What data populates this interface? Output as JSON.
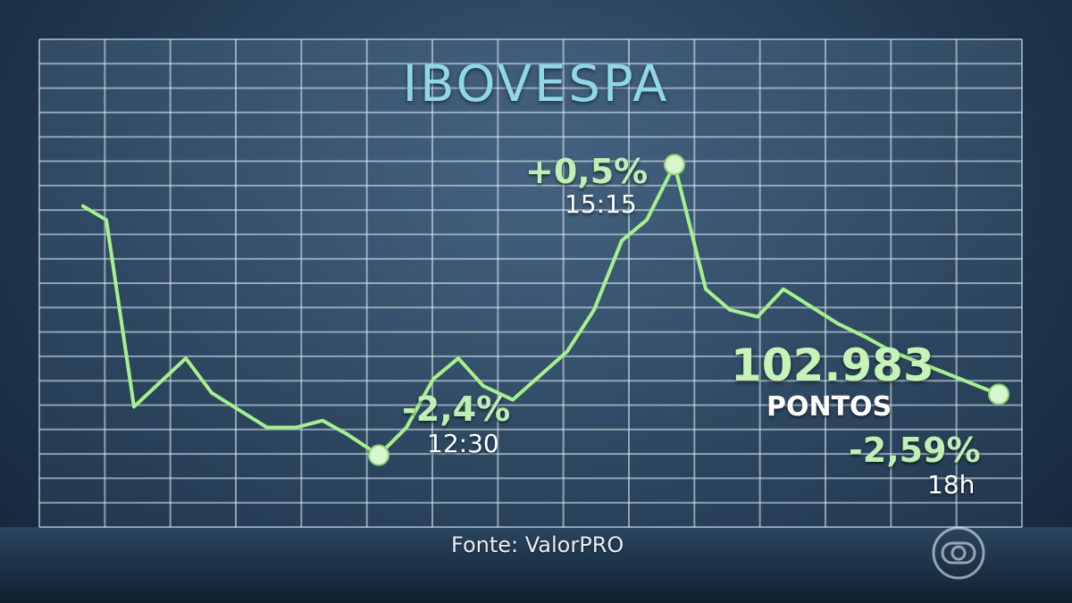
{
  "chart_data": {
    "type": "line",
    "title": "IBOVESPA",
    "series": [
      {
        "values": [
          105.7,
          105.5,
          102.8,
          103.5,
          103.0,
          102.5,
          102.5,
          102.6,
          102.4,
          102.1,
          102.5,
          103.2,
          103.5,
          103.1,
          102.9,
          103.6,
          104.2,
          105.2,
          105.5,
          106.3,
          104.5,
          104.2,
          104.1,
          104.5,
          104.0,
          103.8,
          103.6,
          102.98
        ]
      }
    ],
    "annotations": [
      {
        "label": "+0,5%",
        "time": "15:15"
      },
      {
        "label": "-2,4%",
        "time": "12:30"
      },
      {
        "label": "-2,59%",
        "time": "18h"
      }
    ],
    "close_value": "102.983",
    "close_unit": "PONTOS",
    "source": "Fonte: ValorPRO",
    "line_color": "#a7f08e",
    "marker_color": "#d8f6cc"
  }
}
